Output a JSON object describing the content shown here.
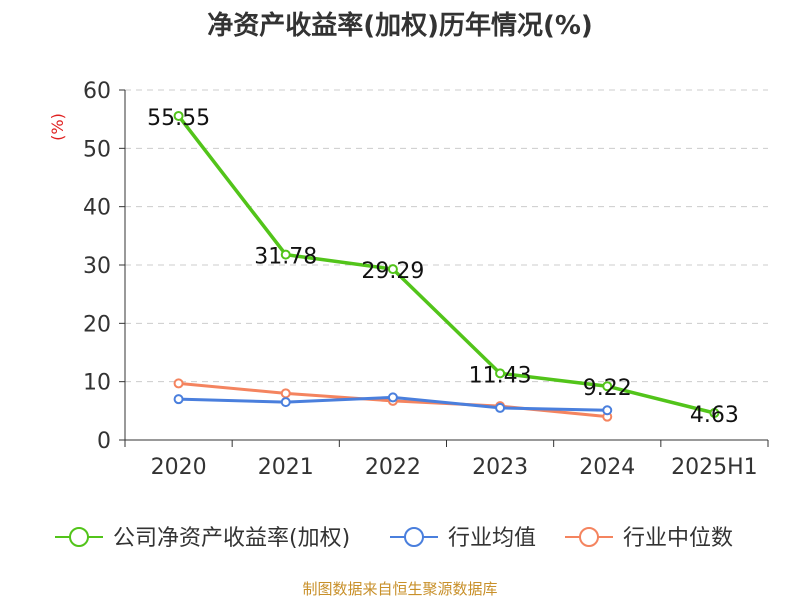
{
  "chart_data": {
    "type": "line",
    "title": "净资产收益率(加权)历年情况(%)",
    "unit": "(%)",
    "categories": [
      "2020",
      "2021",
      "2022",
      "2023",
      "2024",
      "2025H1"
    ],
    "ylim": [
      0,
      60
    ],
    "yticks": [
      0,
      10,
      20,
      30,
      40,
      50,
      60
    ],
    "grid": true,
    "legend_position": "bottom",
    "series": [
      {
        "name": "公司净资产收益率(加权)",
        "color": "#52c41a",
        "values": [
          55.55,
          31.78,
          29.29,
          11.43,
          9.22,
          4.63
        ],
        "labels": [
          "55.55",
          "31.78",
          "29.29",
          "11.43",
          "9.22",
          "4.63"
        ]
      },
      {
        "name": "行业均值",
        "color": "#4a7fdd",
        "values": [
          7.0,
          6.5,
          7.3,
          5.5,
          5.1,
          null
        ]
      },
      {
        "name": "行业中位数",
        "color": "#f4845f",
        "values": [
          9.7,
          8.0,
          6.7,
          5.8,
          4.0,
          null
        ]
      }
    ],
    "source": "制图数据来自恒生聚源数据库"
  }
}
